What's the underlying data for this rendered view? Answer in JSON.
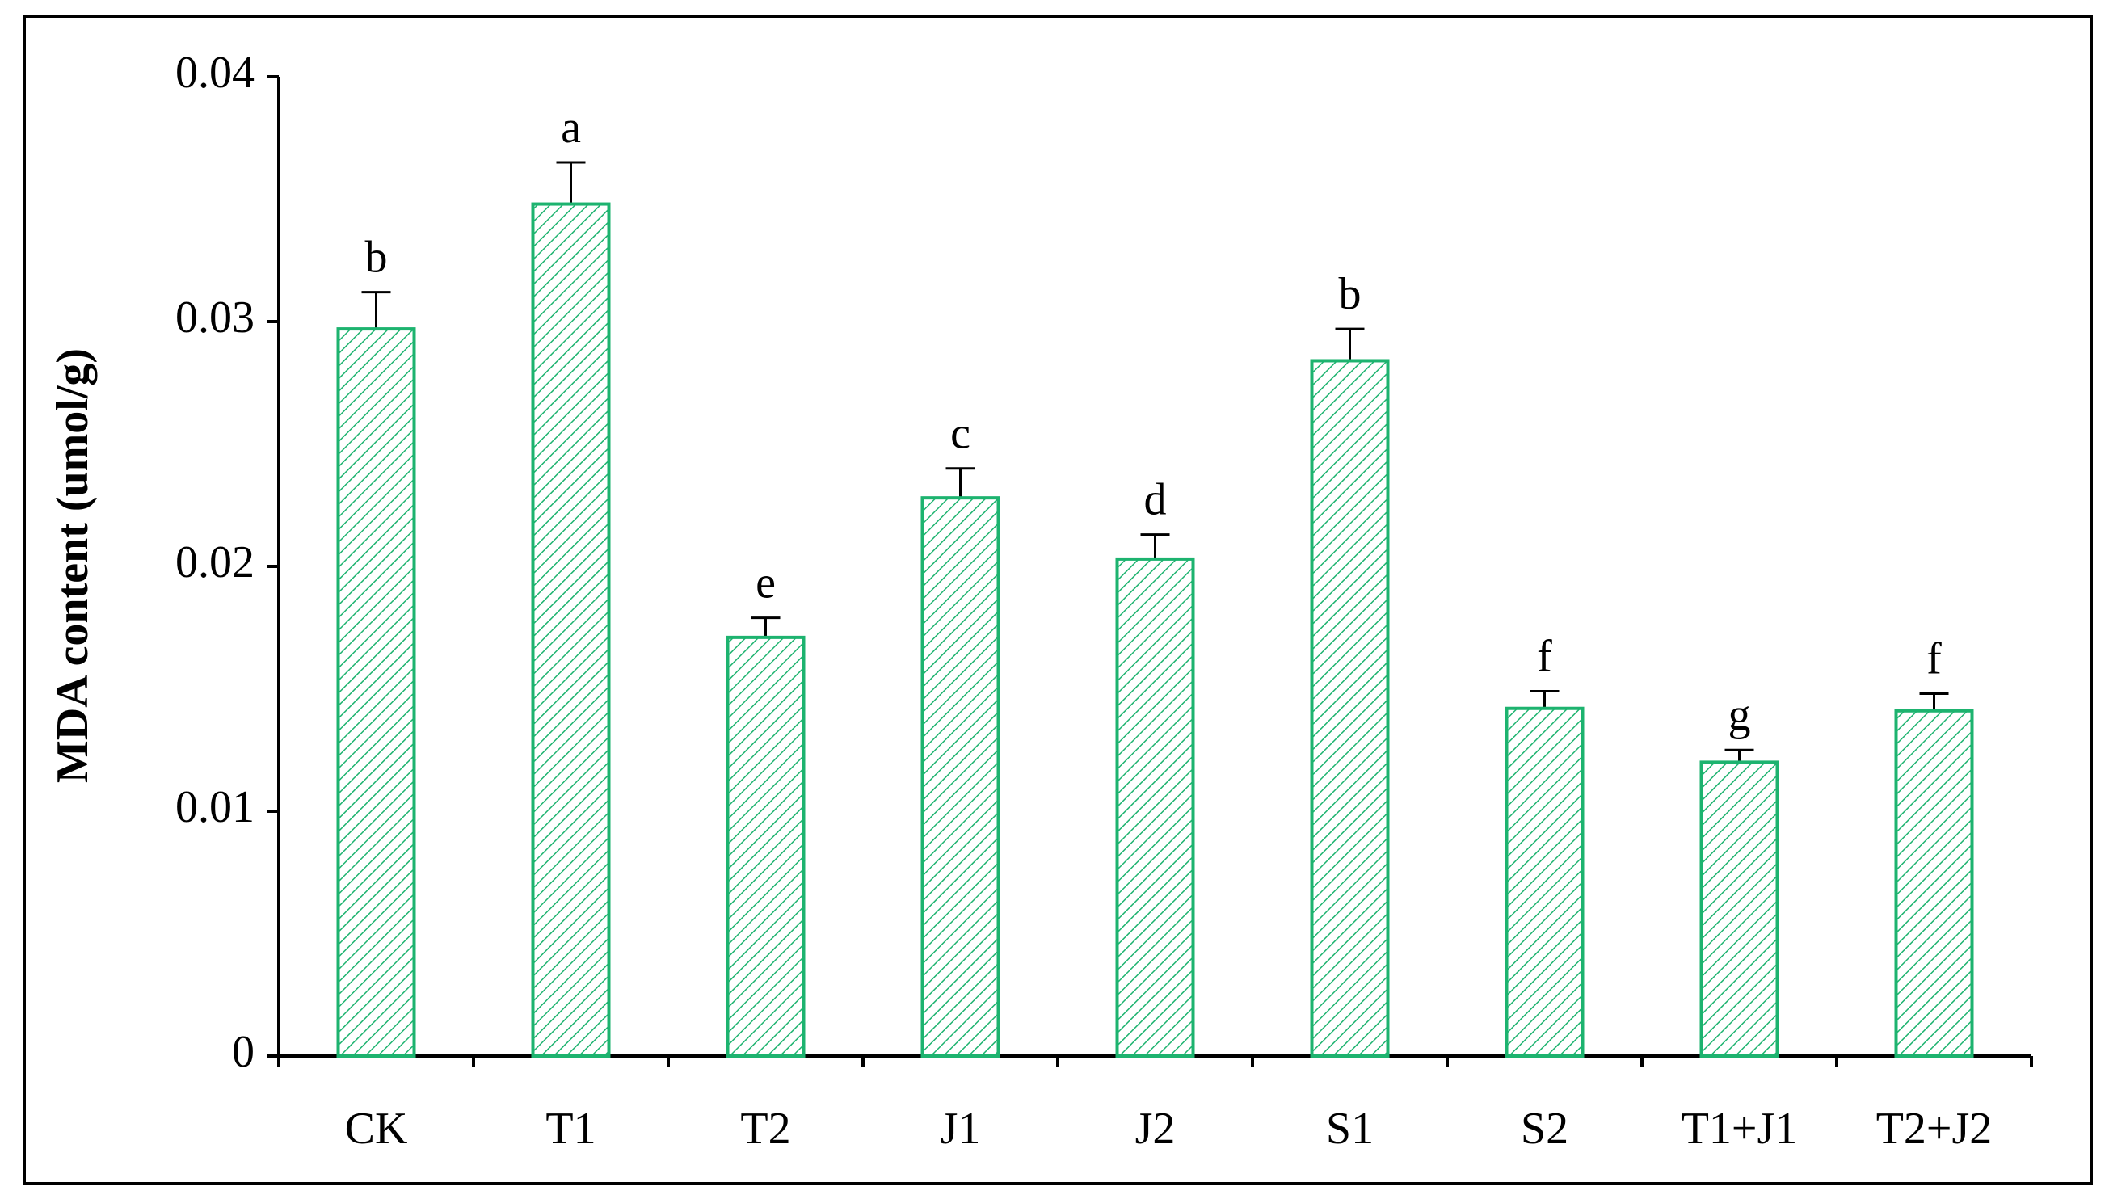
{
  "chart_data": {
    "type": "bar",
    "y_label": "MDA content (umol/g)",
    "categories": [
      "CK",
      "T1",
      "T2",
      "J1",
      "J2",
      "S1",
      "S2",
      "T1+J1",
      "T2+J2"
    ],
    "values": [
      0.0297,
      0.0348,
      0.0171,
      0.0228,
      0.0203,
      0.0284,
      0.0142,
      0.012,
      0.0141
    ],
    "errors": [
      0.0015,
      0.0017,
      0.0008,
      0.0012,
      0.001,
      0.0013,
      0.0007,
      0.0005,
      0.0007
    ],
    "letters": [
      "b",
      "a",
      "e",
      "c",
      "d",
      "b",
      "f",
      "g",
      "f"
    ],
    "color": "#1db36f",
    "ylim": [
      0,
      0.04
    ],
    "yticks": [
      0,
      0.01,
      0.02,
      0.03,
      0.04
    ],
    "grid": false
  }
}
